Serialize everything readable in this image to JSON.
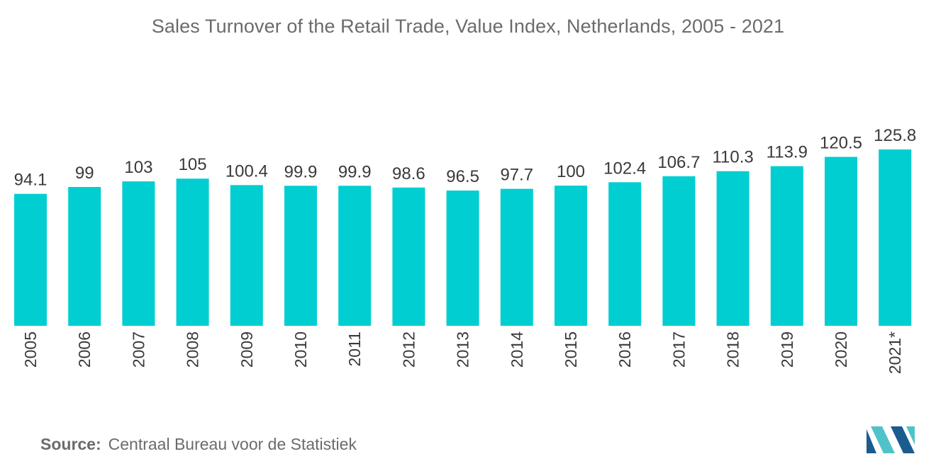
{
  "chart_data": {
    "type": "bar",
    "title": "Sales Turnover of the Retail Trade, Value Index, Netherlands, 2005  - 2021",
    "categories": [
      "2005",
      "2006",
      "2007",
      "2008",
      "2009",
      "2010",
      "2011",
      "2012",
      "2013",
      "2014",
      "2015",
      "2016",
      "2017",
      "2018",
      "2019",
      "2020",
      "2021*"
    ],
    "values": [
      94.1,
      99,
      103,
      105,
      100.4,
      99.9,
      99.9,
      98.6,
      96.5,
      97.7,
      100,
      102.4,
      106.7,
      110.3,
      113.9,
      120.5,
      125.8
    ],
    "value_labels": [
      "94.1",
      "99",
      "103",
      "105",
      "100.4",
      "99.9",
      "99.9",
      "98.6",
      "96.5",
      "97.7",
      "100",
      "102.4",
      "106.7",
      "110.3",
      "113.9",
      "120.5",
      "125.8"
    ],
    "xlabel": "",
    "ylabel": "",
    "ylim": [
      0,
      125.8
    ],
    "grid": false,
    "legend": "none",
    "bar_color": "#00CED1",
    "tick_label_orientation": "vertical"
  },
  "source": {
    "label": "Source:",
    "text": "Centraal Bureau voor de Statistiek"
  },
  "logo": {
    "name": "mordor-intelligence-logo",
    "colors": [
      "#1B5C8F",
      "#4FC3C8"
    ]
  }
}
